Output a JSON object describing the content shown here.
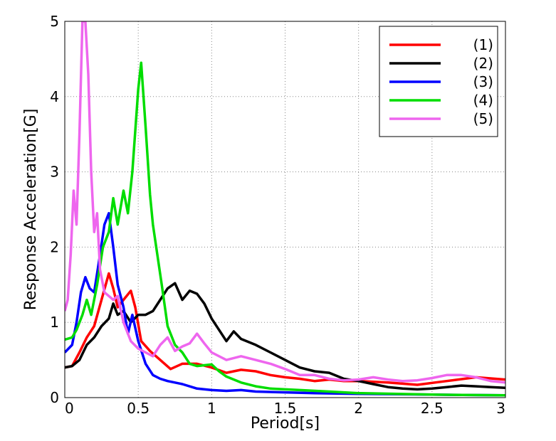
{
  "chart_data": {
    "type": "line",
    "title": "",
    "xlabel": "Period[s]",
    "ylabel": "Response Acceleration[G]",
    "xlim": [
      0,
      3
    ],
    "ylim": [
      0,
      5
    ],
    "grid": true,
    "grid_style": "dotted",
    "legend_position": "top-right",
    "x_ticks": [
      "0",
      "0.5",
      "1",
      "1.5",
      "2",
      "2.5",
      "3"
    ],
    "y_ticks": [
      "0",
      "1",
      "2",
      "3",
      "4",
      "5"
    ],
    "series": [
      {
        "name": "(1)",
        "color": "#ff0000",
        "points": [
          [
            0,
            0.4
          ],
          [
            0.05,
            0.42
          ],
          [
            0.1,
            0.6
          ],
          [
            0.15,
            0.8
          ],
          [
            0.2,
            0.95
          ],
          [
            0.25,
            1.3
          ],
          [
            0.3,
            1.65
          ],
          [
            0.33,
            1.45
          ],
          [
            0.36,
            1.2
          ],
          [
            0.4,
            1.3
          ],
          [
            0.45,
            1.42
          ],
          [
            0.48,
            1.2
          ],
          [
            0.52,
            0.75
          ],
          [
            0.58,
            0.62
          ],
          [
            0.65,
            0.5
          ],
          [
            0.72,
            0.38
          ],
          [
            0.8,
            0.45
          ],
          [
            0.9,
            0.45
          ],
          [
            1.0,
            0.4
          ],
          [
            1.1,
            0.33
          ],
          [
            1.2,
            0.37
          ],
          [
            1.3,
            0.35
          ],
          [
            1.4,
            0.3
          ],
          [
            1.5,
            0.27
          ],
          [
            1.6,
            0.25
          ],
          [
            1.7,
            0.22
          ],
          [
            1.8,
            0.24
          ],
          [
            1.9,
            0.22
          ],
          [
            2.0,
            0.22
          ],
          [
            2.2,
            0.2
          ],
          [
            2.4,
            0.17
          ],
          [
            2.6,
            0.22
          ],
          [
            2.8,
            0.27
          ],
          [
            3.0,
            0.24
          ]
        ]
      },
      {
        "name": "(2)",
        "color": "#000000",
        "points": [
          [
            0,
            0.4
          ],
          [
            0.05,
            0.42
          ],
          [
            0.1,
            0.5
          ],
          [
            0.15,
            0.7
          ],
          [
            0.2,
            0.8
          ],
          [
            0.25,
            0.95
          ],
          [
            0.3,
            1.05
          ],
          [
            0.33,
            1.25
          ],
          [
            0.36,
            1.1
          ],
          [
            0.4,
            1.15
          ],
          [
            0.45,
            1.0
          ],
          [
            0.5,
            1.1
          ],
          [
            0.55,
            1.1
          ],
          [
            0.6,
            1.15
          ],
          [
            0.65,
            1.3
          ],
          [
            0.7,
            1.45
          ],
          [
            0.75,
            1.52
          ],
          [
            0.8,
            1.3
          ],
          [
            0.85,
            1.42
          ],
          [
            0.9,
            1.38
          ],
          [
            0.95,
            1.25
          ],
          [
            1.0,
            1.05
          ],
          [
            1.05,
            0.9
          ],
          [
            1.1,
            0.75
          ],
          [
            1.15,
            0.88
          ],
          [
            1.2,
            0.78
          ],
          [
            1.3,
            0.7
          ],
          [
            1.4,
            0.6
          ],
          [
            1.5,
            0.5
          ],
          [
            1.6,
            0.4
          ],
          [
            1.7,
            0.35
          ],
          [
            1.8,
            0.33
          ],
          [
            1.9,
            0.25
          ],
          [
            2.0,
            0.22
          ],
          [
            2.1,
            0.18
          ],
          [
            2.2,
            0.14
          ],
          [
            2.3,
            0.12
          ],
          [
            2.4,
            0.11
          ],
          [
            2.5,
            0.12
          ],
          [
            2.6,
            0.14
          ],
          [
            2.7,
            0.16
          ],
          [
            2.8,
            0.15
          ],
          [
            2.9,
            0.14
          ],
          [
            3.0,
            0.13
          ]
        ]
      },
      {
        "name": "(3)",
        "color": "#0000ff",
        "points": [
          [
            0,
            0.6
          ],
          [
            0.05,
            0.7
          ],
          [
            0.08,
            1.0
          ],
          [
            0.11,
            1.4
          ],
          [
            0.14,
            1.6
          ],
          [
            0.17,
            1.45
          ],
          [
            0.2,
            1.4
          ],
          [
            0.24,
            1.9
          ],
          [
            0.27,
            2.3
          ],
          [
            0.3,
            2.45
          ],
          [
            0.33,
            2.0
          ],
          [
            0.36,
            1.5
          ],
          [
            0.4,
            1.2
          ],
          [
            0.43,
            0.85
          ],
          [
            0.46,
            1.1
          ],
          [
            0.5,
            0.75
          ],
          [
            0.55,
            0.45
          ],
          [
            0.6,
            0.3
          ],
          [
            0.65,
            0.25
          ],
          [
            0.7,
            0.22
          ],
          [
            0.8,
            0.18
          ],
          [
            0.9,
            0.12
          ],
          [
            1.0,
            0.1
          ],
          [
            1.1,
            0.09
          ],
          [
            1.2,
            0.1
          ],
          [
            1.3,
            0.08
          ],
          [
            1.5,
            0.07
          ],
          [
            1.7,
            0.06
          ],
          [
            2.0,
            0.05
          ],
          [
            2.5,
            0.04
          ],
          [
            3.0,
            0.03
          ]
        ]
      },
      {
        "name": "(4)",
        "color": "#00dd00",
        "points": [
          [
            0,
            0.77
          ],
          [
            0.05,
            0.8
          ],
          [
            0.08,
            0.9
          ],
          [
            0.12,
            1.1
          ],
          [
            0.15,
            1.3
          ],
          [
            0.18,
            1.1
          ],
          [
            0.22,
            1.5
          ],
          [
            0.26,
            2.0
          ],
          [
            0.3,
            2.2
          ],
          [
            0.33,
            2.65
          ],
          [
            0.36,
            2.3
          ],
          [
            0.4,
            2.75
          ],
          [
            0.43,
            2.45
          ],
          [
            0.46,
            3.0
          ],
          [
            0.5,
            4.1
          ],
          [
            0.52,
            4.45
          ],
          [
            0.55,
            3.6
          ],
          [
            0.58,
            2.7
          ],
          [
            0.6,
            2.3
          ],
          [
            0.63,
            1.9
          ],
          [
            0.66,
            1.5
          ],
          [
            0.7,
            0.95
          ],
          [
            0.75,
            0.7
          ],
          [
            0.8,
            0.6
          ],
          [
            0.85,
            0.45
          ],
          [
            0.9,
            0.42
          ],
          [
            1.0,
            0.44
          ],
          [
            1.05,
            0.35
          ],
          [
            1.1,
            0.28
          ],
          [
            1.2,
            0.2
          ],
          [
            1.3,
            0.15
          ],
          [
            1.4,
            0.12
          ],
          [
            1.6,
            0.1
          ],
          [
            1.8,
            0.08
          ],
          [
            2.0,
            0.06
          ],
          [
            2.5,
            0.04
          ],
          [
            3.0,
            0.03
          ]
        ]
      },
      {
        "name": "(5)",
        "color": "#ee66ee",
        "points": [
          [
            0,
            1.15
          ],
          [
            0.02,
            1.3
          ],
          [
            0.04,
            1.9
          ],
          [
            0.06,
            2.75
          ],
          [
            0.08,
            2.3
          ],
          [
            0.1,
            3.5
          ],
          [
            0.12,
            5.0
          ],
          [
            0.14,
            5.0
          ],
          [
            0.16,
            4.3
          ],
          [
            0.18,
            3.0
          ],
          [
            0.2,
            2.2
          ],
          [
            0.22,
            2.45
          ],
          [
            0.24,
            1.7
          ],
          [
            0.27,
            1.4
          ],
          [
            0.3,
            1.35
          ],
          [
            0.33,
            1.3
          ],
          [
            0.36,
            1.35
          ],
          [
            0.4,
            1.0
          ],
          [
            0.45,
            0.75
          ],
          [
            0.5,
            0.65
          ],
          [
            0.55,
            0.6
          ],
          [
            0.6,
            0.55
          ],
          [
            0.65,
            0.7
          ],
          [
            0.7,
            0.8
          ],
          [
            0.75,
            0.62
          ],
          [
            0.8,
            0.68
          ],
          [
            0.85,
            0.72
          ],
          [
            0.9,
            0.85
          ],
          [
            0.95,
            0.72
          ],
          [
            1.0,
            0.6
          ],
          [
            1.1,
            0.5
          ],
          [
            1.2,
            0.55
          ],
          [
            1.3,
            0.5
          ],
          [
            1.4,
            0.45
          ],
          [
            1.5,
            0.38
          ],
          [
            1.6,
            0.3
          ],
          [
            1.7,
            0.3
          ],
          [
            1.8,
            0.25
          ],
          [
            1.9,
            0.23
          ],
          [
            2.0,
            0.24
          ],
          [
            2.1,
            0.27
          ],
          [
            2.2,
            0.24
          ],
          [
            2.3,
            0.22
          ],
          [
            2.4,
            0.23
          ],
          [
            2.5,
            0.26
          ],
          [
            2.6,
            0.3
          ],
          [
            2.7,
            0.3
          ],
          [
            2.8,
            0.27
          ],
          [
            2.9,
            0.22
          ],
          [
            3.0,
            0.2
          ]
        ]
      }
    ]
  }
}
